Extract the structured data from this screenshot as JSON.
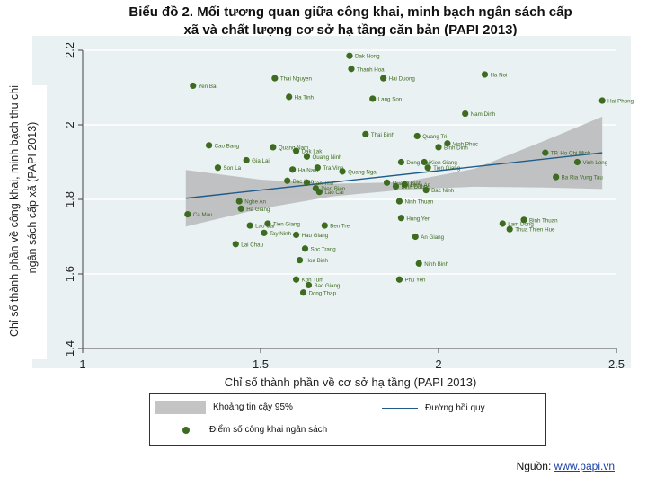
{
  "title_line1": "Biểu đồ 2. Mối tương quan giữa công khai, minh bạch ngân sách cấp",
  "title_line2": "xã và chất lượng cơ sở hạ tầng căn bản (PAPI 2013)",
  "source_label": "Nguồn:",
  "source_link": "www.papi.vn",
  "legend": {
    "ci": "Khoảng tin cậy 95%",
    "line": "Đường hồi quy",
    "points": "Điểm số công khai ngân sách"
  },
  "colors": {
    "plot_bg": "#eaf1f3",
    "point": "#3d6b1f",
    "point_label": "#3d6b1f",
    "ci_band": "#b9b9b9",
    "regression": "#1f5c8a"
  },
  "chart_data": {
    "type": "scatter",
    "xlabel": "Chỉ số thành phần về cơ sở hạ tầng (PAPI 2013)",
    "ylabel_line1": "Chỉ số thành phần về công khai, minh bạch thu chi",
    "ylabel_line2": "ngân sách cấp xã (PAPI 2013)",
    "xlim": [
      1,
      2.5
    ],
    "ylim": [
      1.4,
      2.2
    ],
    "xticks": [
      "1",
      "1.5",
      "2",
      "2.5"
    ],
    "yticks": [
      "1.4",
      "1.6",
      "1.8",
      "2",
      "2.2"
    ],
    "regression": {
      "x": [
        1.29,
        2.46
      ],
      "y": [
        1.803,
        1.925
      ]
    },
    "ci_band": {
      "x": [
        1.29,
        1.5,
        1.7,
        1.9,
        2.1,
        2.3,
        2.46
      ],
      "lower": [
        1.727,
        1.775,
        1.808,
        1.826,
        1.834,
        1.832,
        1.828
      ],
      "upper": [
        1.879,
        1.853,
        1.842,
        1.846,
        1.882,
        1.958,
        2.022
      ]
    },
    "points": [
      {
        "name": "Dak Nong",
        "x": 1.75,
        "y": 2.185
      },
      {
        "name": "Thanh Hoa",
        "x": 1.755,
        "y": 2.15
      },
      {
        "name": "Thai Nguyen",
        "x": 1.54,
        "y": 2.125
      },
      {
        "name": "Hai Duong",
        "x": 1.845,
        "y": 2.125
      },
      {
        "name": "Ha Noi",
        "x": 2.13,
        "y": 2.135
      },
      {
        "name": "Yen Bai",
        "x": 1.31,
        "y": 2.105
      },
      {
        "name": "Ha Tinh",
        "x": 1.58,
        "y": 2.075
      },
      {
        "name": "Lang Son",
        "x": 1.815,
        "y": 2.07
      },
      {
        "name": "Hai Phong",
        "x": 2.46,
        "y": 2.065
      },
      {
        "name": "Nam Dinh",
        "x": 2.075,
        "y": 2.03
      },
      {
        "name": "Thai Binh",
        "x": 1.795,
        "y": 1.975
      },
      {
        "name": "Quang Tri",
        "x": 1.94,
        "y": 1.97
      },
      {
        "name": "Vinh Phuc",
        "x": 2.025,
        "y": 1.95
      },
      {
        "name": "Cao Bang",
        "x": 1.355,
        "y": 1.945
      },
      {
        "name": "Quang Nam",
        "x": 1.535,
        "y": 1.94
      },
      {
        "name": "Binh Dinh",
        "x": 2.0,
        "y": 1.94
      },
      {
        "name": "Dak Lak",
        "x": 1.6,
        "y": 1.93
      },
      {
        "name": "TP. Ho Chi Minh",
        "x": 2.3,
        "y": 1.925
      },
      {
        "name": "Quang Ninh",
        "x": 1.63,
        "y": 1.915
      },
      {
        "name": "Gia Lai",
        "x": 1.46,
        "y": 1.905
      },
      {
        "name": "Dong Nai",
        "x": 1.895,
        "y": 1.9
      },
      {
        "name": "Kien Giang",
        "x": 1.96,
        "y": 1.9
      },
      {
        "name": "Vinh Long",
        "x": 2.39,
        "y": 1.9
      },
      {
        "name": "Son La",
        "x": 1.38,
        "y": 1.885
      },
      {
        "name": "Ha Nam",
        "x": 1.59,
        "y": 1.88
      },
      {
        "name": "Tra Vinh",
        "x": 1.66,
        "y": 1.885
      },
      {
        "name": "Tien Giang",
        "x": 1.97,
        "y": 1.885
      },
      {
        "name": "Quang Ngai",
        "x": 1.73,
        "y": 1.875
      },
      {
        "name": "Ba Ria Vung Tau",
        "x": 2.33,
        "y": 1.86
      },
      {
        "name": "Bac Kan",
        "x": 1.575,
        "y": 1.85
      },
      {
        "name": "Can Tho",
        "x": 1.63,
        "y": 1.845
      },
      {
        "name": "Quang Binh",
        "x": 1.855,
        "y": 1.845
      },
      {
        "name": "Long An",
        "x": 1.905,
        "y": 1.84
      },
      {
        "name": "Binh Duong",
        "x": 1.88,
        "y": 1.835
      },
      {
        "name": "Dien Bien",
        "x": 1.655,
        "y": 1.83
      },
      {
        "name": "Bac Ninh",
        "x": 1.965,
        "y": 1.825
      },
      {
        "name": "Lao Cai",
        "x": 1.665,
        "y": 1.82
      },
      {
        "name": "Nghe An",
        "x": 1.44,
        "y": 1.795
      },
      {
        "name": "Ninh Thuan",
        "x": 1.89,
        "y": 1.795
      },
      {
        "name": "Ha Giang",
        "x": 1.445,
        "y": 1.775
      },
      {
        "name": "Ca Mau",
        "x": 1.295,
        "y": 1.76
      },
      {
        "name": "Hung Yen",
        "x": 1.895,
        "y": 1.75
      },
      {
        "name": "Binh Thuan",
        "x": 2.24,
        "y": 1.745
      },
      {
        "name": "Tien Giang",
        "x": 1.52,
        "y": 1.735
      },
      {
        "name": "Lam Dong",
        "x": 2.18,
        "y": 1.735
      },
      {
        "name": "Lao Cai",
        "x": 1.47,
        "y": 1.73
      },
      {
        "name": "Ben Tre",
        "x": 1.68,
        "y": 1.73
      },
      {
        "name": "Thua Thien Hue",
        "x": 2.2,
        "y": 1.72
      },
      {
        "name": "Tay Ninh",
        "x": 1.51,
        "y": 1.71
      },
      {
        "name": "Hau Giang",
        "x": 1.6,
        "y": 1.705
      },
      {
        "name": "An Giang",
        "x": 1.935,
        "y": 1.7
      },
      {
        "name": "Lai Chau",
        "x": 1.43,
        "y": 1.68
      },
      {
        "name": "Soc Trang",
        "x": 1.625,
        "y": 1.668
      },
      {
        "name": "Hoa Binh",
        "x": 1.61,
        "y": 1.637
      },
      {
        "name": "Ninh Binh",
        "x": 1.945,
        "y": 1.628
      },
      {
        "name": "Kon Tum",
        "x": 1.6,
        "y": 1.585
      },
      {
        "name": "Phu Yen",
        "x": 1.89,
        "y": 1.585
      },
      {
        "name": "Bac Giang",
        "x": 1.635,
        "y": 1.57
      },
      {
        "name": "Dong Thap",
        "x": 1.62,
        "y": 1.55
      }
    ]
  }
}
